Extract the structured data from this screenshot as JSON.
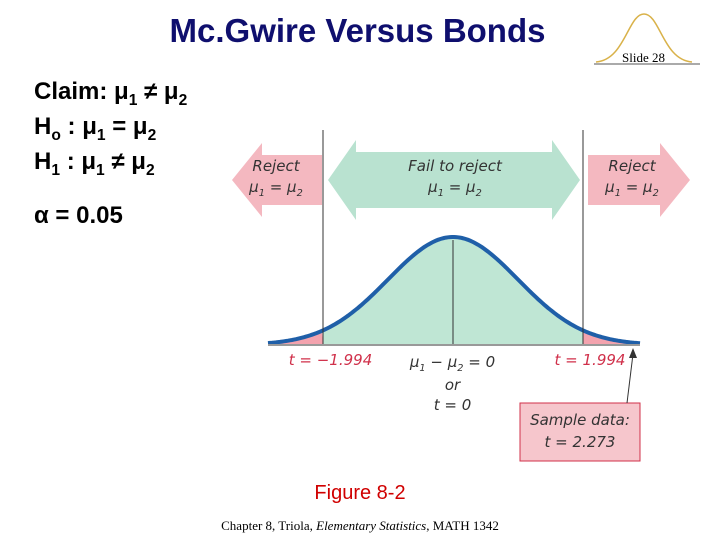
{
  "header": {
    "title": "Mc.Gwire Versus Bonds",
    "slide": "Slide 28"
  },
  "hypotheses": [
    [
      {
        "text": "Claim: μ"
      },
      {
        "sub": "1"
      },
      {
        "text": " ≠ μ"
      },
      {
        "sub": "2"
      }
    ],
    [
      {
        "text": "H"
      },
      {
        "sub": "o"
      },
      {
        "text": " : μ"
      },
      {
        "sub": "1"
      },
      {
        "text": " = μ"
      },
      {
        "sub": "2"
      }
    ],
    [
      {
        "text": "H"
      },
      {
        "sub": "1"
      },
      {
        "text": " : μ"
      },
      {
        "sub": "1"
      },
      {
        "text": " ≠ μ"
      },
      {
        "sub": "2"
      }
    ],
    [
      {
        "text": "α = 0.05"
      }
    ]
  ],
  "figure": {
    "reject_left": {
      "label": "Reject",
      "condition": [
        {
          "text": "μ"
        },
        {
          "sub": "1"
        },
        {
          "text": " = μ"
        },
        {
          "sub": "2"
        }
      ]
    },
    "fail": {
      "label": "Fail to reject",
      "condition": [
        {
          "text": "μ"
        },
        {
          "sub": "1"
        },
        {
          "text": " = μ"
        },
        {
          "sub": "2"
        }
      ]
    },
    "reject_right": {
      "label": "Reject",
      "condition": [
        {
          "text": "μ"
        },
        {
          "sub": "1"
        },
        {
          "text": " = μ"
        },
        {
          "sub": "2"
        }
      ]
    },
    "t_left": "t = −1.994",
    "center": [
      {
        "text": "μ"
      },
      {
        "sub": "1"
      },
      {
        "text": " − μ"
      },
      {
        "sub": "2"
      },
      {
        "text": " = 0"
      }
    ],
    "or": "or",
    "t_zero": "t = 0",
    "t_right": "t = 1.994",
    "sample": {
      "label": "Sample data:",
      "value": "t = 2.273"
    },
    "caption": "Figure 8-2"
  },
  "footer": [
    {
      "text": "Chapter 8, Triola, "
    },
    {
      "text": "Elementary Statistics",
      "italic": true
    },
    {
      "text": ", MATH 1342"
    }
  ]
}
